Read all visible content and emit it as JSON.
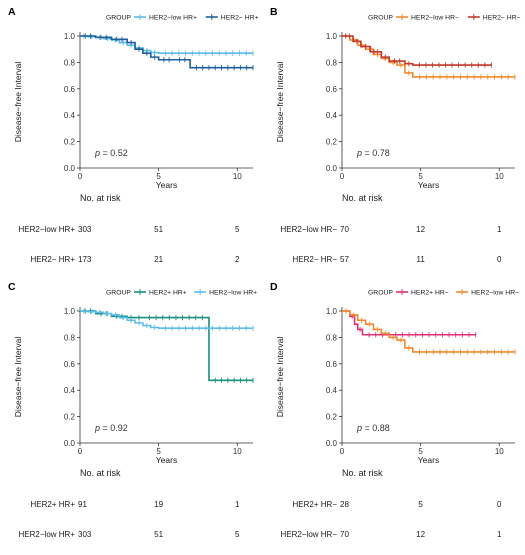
{
  "chart_data": [
    {
      "panel": "A",
      "type": "line",
      "subtype": "kaplan-meier",
      "legend_title": "GROUP",
      "legend_position": "top",
      "xlabel": "Years",
      "ylabel": "Disease−free Interval",
      "xlim": [
        0,
        11
      ],
      "ylim": [
        0,
        1.0
      ],
      "xticks": [
        "0",
        "5",
        "10"
      ],
      "yticks": [
        "0.0",
        "0.2",
        "0.4",
        "0.6",
        "0.8",
        "1.0"
      ],
      "p_value": "= 0.52",
      "series": [
        {
          "name": "HER2−low HR+",
          "color": "#5bbcea",
          "x": [
            0,
            0.5,
            1.0,
            1.5,
            2.0,
            2.5,
            3.0,
            3.5,
            4.0,
            4.5,
            5.0,
            11.0
          ],
          "y": [
            1.0,
            0.995,
            0.99,
            0.98,
            0.97,
            0.95,
            0.93,
            0.91,
            0.89,
            0.875,
            0.87,
            0.87
          ]
        },
        {
          "name": "HER2− HR+",
          "color": "#1f5f99",
          "x": [
            0,
            1.0,
            2.0,
            3.0,
            3.5,
            4.0,
            4.5,
            5.0,
            6.0,
            7.0,
            11.0
          ],
          "y": [
            1.0,
            0.99,
            0.975,
            0.95,
            0.9,
            0.87,
            0.84,
            0.82,
            0.82,
            0.76,
            0.76
          ]
        }
      ],
      "risk_table": {
        "title": "No. at risk",
        "rows": [
          {
            "label": "HER2−low HR+",
            "values": [
              "303",
              "51",
              "5"
            ]
          },
          {
            "label": "HER2− HR+",
            "values": [
              "173",
              "21",
              "2"
            ]
          }
        ]
      }
    },
    {
      "panel": "B",
      "type": "line",
      "subtype": "kaplan-meier",
      "legend_title": "GROUP",
      "legend_position": "top",
      "xlabel": "Years",
      "ylabel": "Disease−free Interval",
      "xlim": [
        0,
        11
      ],
      "ylim": [
        0,
        1.0
      ],
      "xticks": [
        "0",
        "5",
        "10"
      ],
      "yticks": [
        "0.0",
        "0.2",
        "0.4",
        "0.6",
        "0.8",
        "1.0"
      ],
      "p_value": "= 0.78",
      "series": [
        {
          "name": "HER2−low HR−",
          "color": "#f08a2e",
          "x": [
            0,
            0.5,
            1.0,
            1.5,
            2.0,
            2.5,
            3.0,
            3.5,
            4.0,
            4.5,
            11.0
          ],
          "y": [
            1.0,
            0.97,
            0.93,
            0.9,
            0.86,
            0.83,
            0.8,
            0.78,
            0.72,
            0.69,
            0.69
          ]
        },
        {
          "name": "HER2− HR−",
          "color": "#c0392b",
          "x": [
            0,
            0.7,
            1.2,
            1.8,
            2.5,
            3.0,
            4.0,
            4.5,
            9.5
          ],
          "y": [
            1.0,
            0.96,
            0.92,
            0.88,
            0.84,
            0.81,
            0.79,
            0.78,
            0.78
          ]
        }
      ],
      "risk_table": {
        "title": "No. at risk",
        "rows": [
          {
            "label": "HER2−low HR−",
            "values": [
              "70",
              "12",
              "1"
            ]
          },
          {
            "label": "HER2− HR−",
            "values": [
              "57",
              "11",
              "0"
            ]
          }
        ]
      }
    },
    {
      "panel": "C",
      "type": "line",
      "subtype": "kaplan-meier",
      "legend_title": "GROUP",
      "legend_position": "top",
      "xlabel": "Years",
      "ylabel": "Disease−free Interval",
      "xlim": [
        0,
        11
      ],
      "ylim": [
        0,
        1.0
      ],
      "xticks": [
        "0",
        "5",
        "10"
      ],
      "yticks": [
        "0.0",
        "0.2",
        "0.4",
        "0.6",
        "0.8",
        "1.0"
      ],
      "p_value": "= 0.92",
      "series": [
        {
          "name": "HER2+ HR+",
          "color": "#1a8f80",
          "x": [
            0,
            1.0,
            2.0,
            3.0,
            3.5,
            4.0,
            8.2,
            8.2,
            11.0
          ],
          "y": [
            1.0,
            0.98,
            0.96,
            0.95,
            0.95,
            0.95,
            0.95,
            0.475,
            0.475
          ]
        },
        {
          "name": "HER2−low HR+",
          "color": "#5bbcea",
          "x": [
            0,
            0.5,
            1.0,
            1.5,
            2.0,
            2.5,
            3.0,
            3.5,
            4.0,
            4.5,
            5.0,
            11.0
          ],
          "y": [
            1.0,
            0.995,
            0.99,
            0.98,
            0.97,
            0.95,
            0.93,
            0.91,
            0.89,
            0.875,
            0.87,
            0.87
          ]
        }
      ],
      "risk_table": {
        "title": "No. at risk",
        "rows": [
          {
            "label": "HER2+ HR+",
            "values": [
              "91",
              "19",
              "1"
            ]
          },
          {
            "label": "HER2−low HR+",
            "values": [
              "303",
              "51",
              "5"
            ]
          }
        ]
      }
    },
    {
      "panel": "D",
      "type": "line",
      "subtype": "kaplan-meier",
      "legend_title": "GROUP",
      "legend_position": "top",
      "xlabel": "Years",
      "ylabel": "Disease−free Interval",
      "xlim": [
        0,
        11
      ],
      "ylim": [
        0,
        1.0
      ],
      "xticks": [
        "0",
        "5",
        "10"
      ],
      "yticks": [
        "0.0",
        "0.2",
        "0.4",
        "0.6",
        "0.8",
        "1.0"
      ],
      "p_value": "= 0.88",
      "series": [
        {
          "name": "HER2+ HR−",
          "color": "#e0307a",
          "x": [
            0,
            0.5,
            0.8,
            1.0,
            1.3,
            8.5
          ],
          "y": [
            1.0,
            0.96,
            0.9,
            0.86,
            0.82,
            0.82
          ]
        },
        {
          "name": "HER2−low HR−",
          "color": "#f08a2e",
          "x": [
            0,
            0.5,
            1.0,
            1.5,
            2.0,
            2.5,
            3.0,
            3.5,
            4.0,
            4.5,
            11.0
          ],
          "y": [
            1.0,
            0.97,
            0.93,
            0.9,
            0.86,
            0.83,
            0.8,
            0.78,
            0.72,
            0.69,
            0.69
          ]
        }
      ],
      "risk_table": {
        "title": "No. at risk",
        "rows": [
          {
            "label": "HER2+ HR−",
            "values": [
              "28",
              "5",
              "0"
            ]
          },
          {
            "label": "HER2−low HR−",
            "values": [
              "70",
              "12",
              "1"
            ]
          }
        ]
      }
    }
  ]
}
